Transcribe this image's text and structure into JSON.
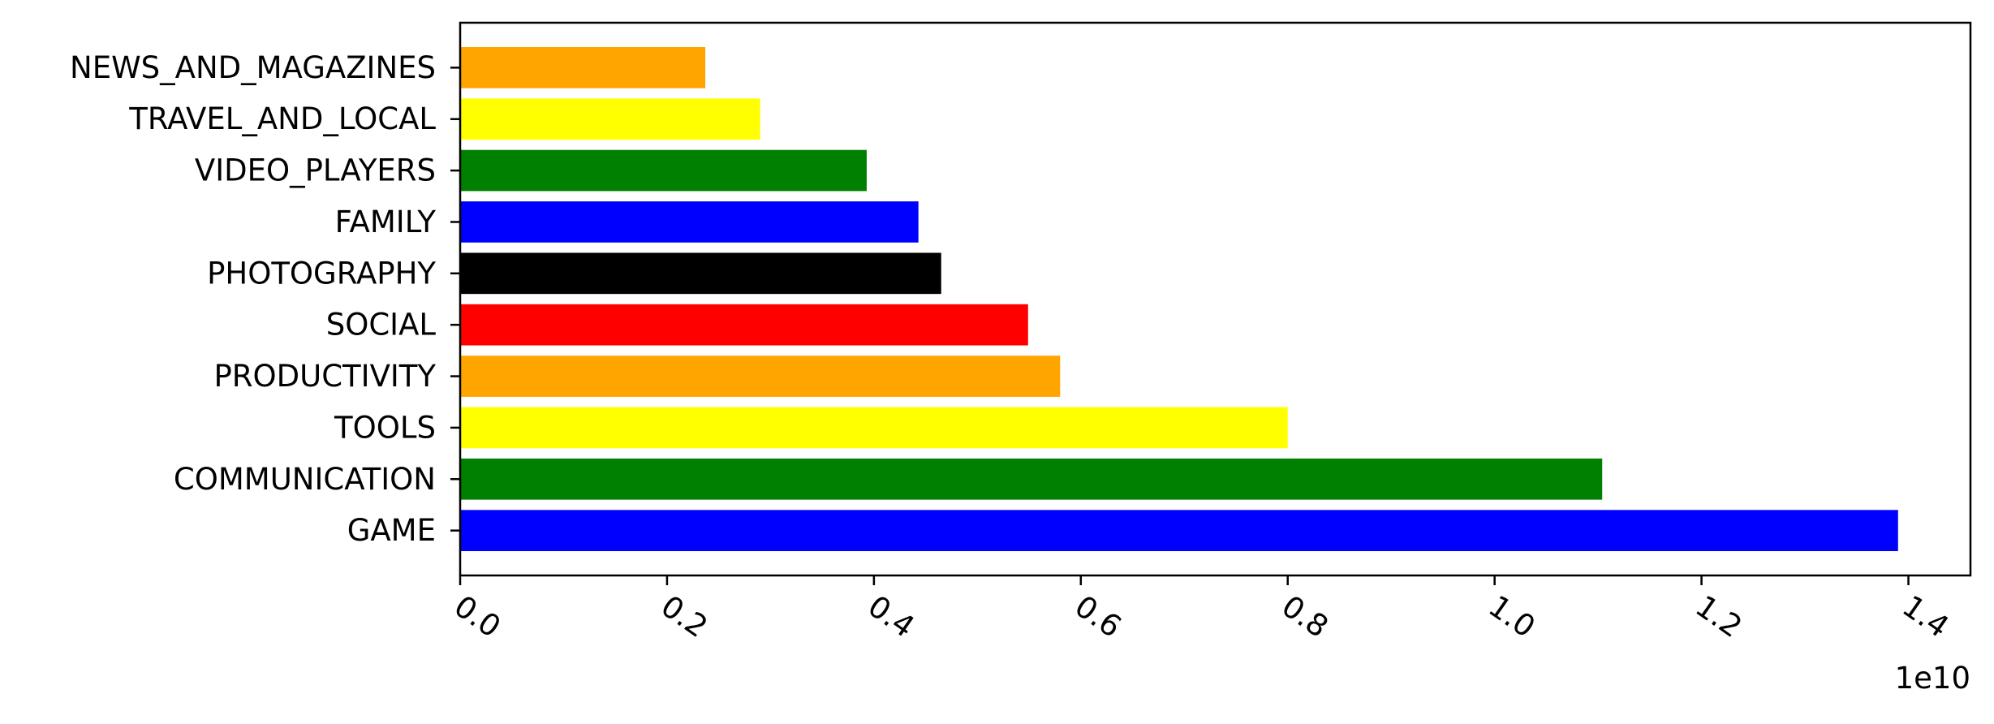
{
  "chart_data": {
    "type": "bar",
    "orientation": "horizontal",
    "title": "",
    "xlabel": "",
    "ylabel": "",
    "x_offset_text": "1e10",
    "x_scale": 10000000000,
    "categories": [
      "GAME",
      "COMMUNICATION",
      "TOOLS",
      "PRODUCTIVITY",
      "SOCIAL",
      "PHOTOGRAPHY",
      "FAMILY",
      "VIDEO_PLAYERS",
      "TRAVEL_AND_LOCAL",
      "NEWS_AND_MAGAZINES"
    ],
    "values": [
      13900000000,
      11040000000,
      8000000000,
      5800000000,
      5490000000,
      4650000000,
      4430000000,
      3930000000,
      2900000000,
      2370000000
    ],
    "colors": [
      "#0000ff",
      "#008000",
      "#ffff00",
      "#ffa500",
      "#ff0000",
      "#000000",
      "#0000ff",
      "#008000",
      "#ffff00",
      "#ffa500"
    ],
    "xlim": [
      0,
      14600000000
    ],
    "x_ticks": [
      0.0,
      0.2,
      0.4,
      0.6,
      0.8,
      1.0,
      1.2,
      1.4
    ],
    "x_tick_labels": [
      "0.0",
      "0.2",
      "0.4",
      "0.6",
      "0.8",
      "1.0",
      "1.2",
      "1.4"
    ],
    "grid": false,
    "legend": "none"
  }
}
